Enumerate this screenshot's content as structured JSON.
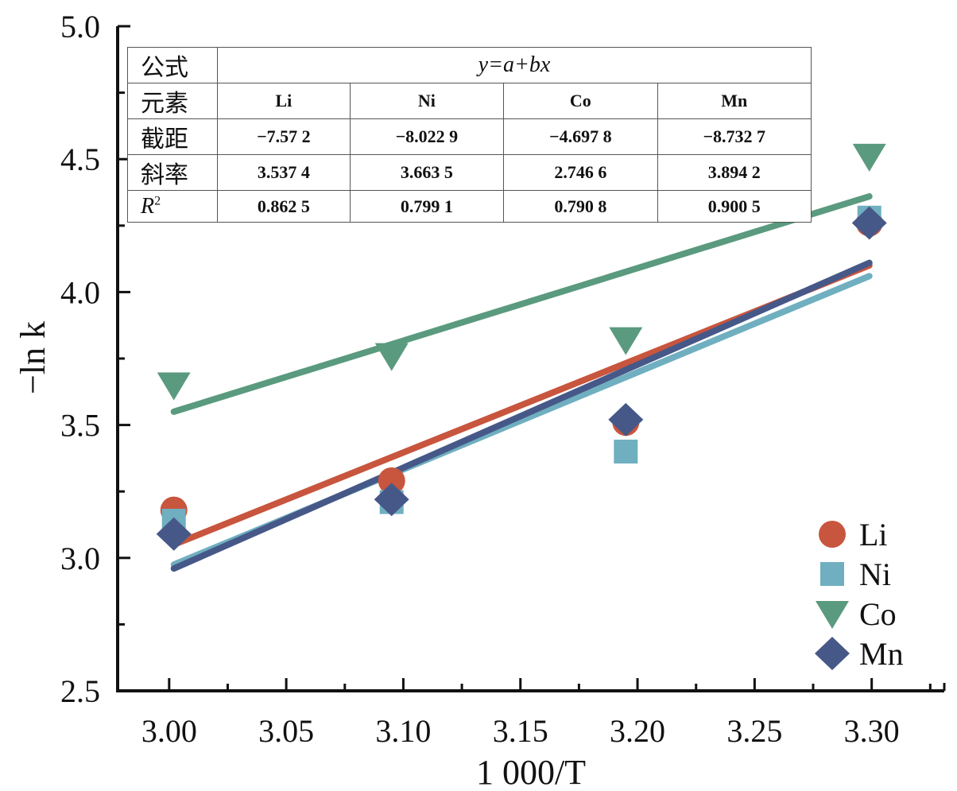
{
  "chart_data": {
    "type": "scatter",
    "title": "",
    "xlabel": "1 000/T",
    "ylabel": "−ln k",
    "xlim": [
      2.978,
      3.331
    ],
    "ylim": [
      2.5,
      5.0
    ],
    "xticks": [
      3.0,
      3.05,
      3.1,
      3.15,
      3.2,
      3.25,
      3.3
    ],
    "xtick_labels": [
      "3.00",
      "3.05",
      "3.10",
      "3.15",
      "3.20",
      "3.25",
      "3.30"
    ],
    "yticks": [
      2.5,
      3.0,
      3.5,
      4.0,
      4.5,
      5.0
    ],
    "ytick_labels": [
      "2.5",
      "3.0",
      "3.5",
      "4.0",
      "4.5",
      "5.0"
    ],
    "grid": false,
    "legend_position": "bottom-right",
    "series": [
      {
        "name": "Li",
        "marker": "circle",
        "color": "#c8553d",
        "x": [
          3.002,
          3.095,
          3.195,
          3.299
        ],
        "y": [
          3.18,
          3.29,
          3.51,
          4.26
        ],
        "fit": {
          "x": [
            3.002,
            3.299
          ],
          "y": [
            3.05,
            4.1
          ]
        }
      },
      {
        "name": "Ni",
        "marker": "square",
        "color": "#6fafc0",
        "x": [
          3.002,
          3.095,
          3.195,
          3.299
        ],
        "y": [
          3.14,
          3.21,
          3.4,
          4.28
        ],
        "fit": {
          "x": [
            3.002,
            3.299
          ],
          "y": [
            2.975,
            4.06
          ]
        }
      },
      {
        "name": "Co",
        "marker": "triangle-down",
        "color": "#5a9a7e",
        "x": [
          3.002,
          3.095,
          3.195,
          3.299
        ],
        "y": [
          3.65,
          3.76,
          3.82,
          4.51
        ],
        "fit": {
          "x": [
            3.002,
            3.299
          ],
          "y": [
            3.55,
            4.36
          ]
        }
      },
      {
        "name": "Mn",
        "marker": "diamond",
        "color": "#465888",
        "x": [
          3.002,
          3.095,
          3.195,
          3.299
        ],
        "y": [
          3.09,
          3.22,
          3.52,
          4.26
        ],
        "fit": {
          "x": [
            3.002,
            3.299
          ],
          "y": [
            2.96,
            4.11
          ]
        }
      }
    ],
    "table": {
      "formula_label": "公式",
      "formula": "y=a+bx",
      "element_label": "元素",
      "elements": [
        "Li",
        "Ni",
        "Co",
        "Mn"
      ],
      "intercept_label": "截距",
      "intercepts": [
        "−7.57 2",
        "−8.022 9",
        "−4.697 8",
        "−8.732 7"
      ],
      "slope_label": "斜率",
      "slopes": [
        "3.537 4",
        "3.663 5",
        "2.746 6",
        "3.894 2"
      ],
      "r2_label": "R",
      "r2_sup": "2",
      "r2": [
        "0.862 5",
        "0.799 1",
        "0.790 8",
        "0.900 5"
      ]
    }
  }
}
